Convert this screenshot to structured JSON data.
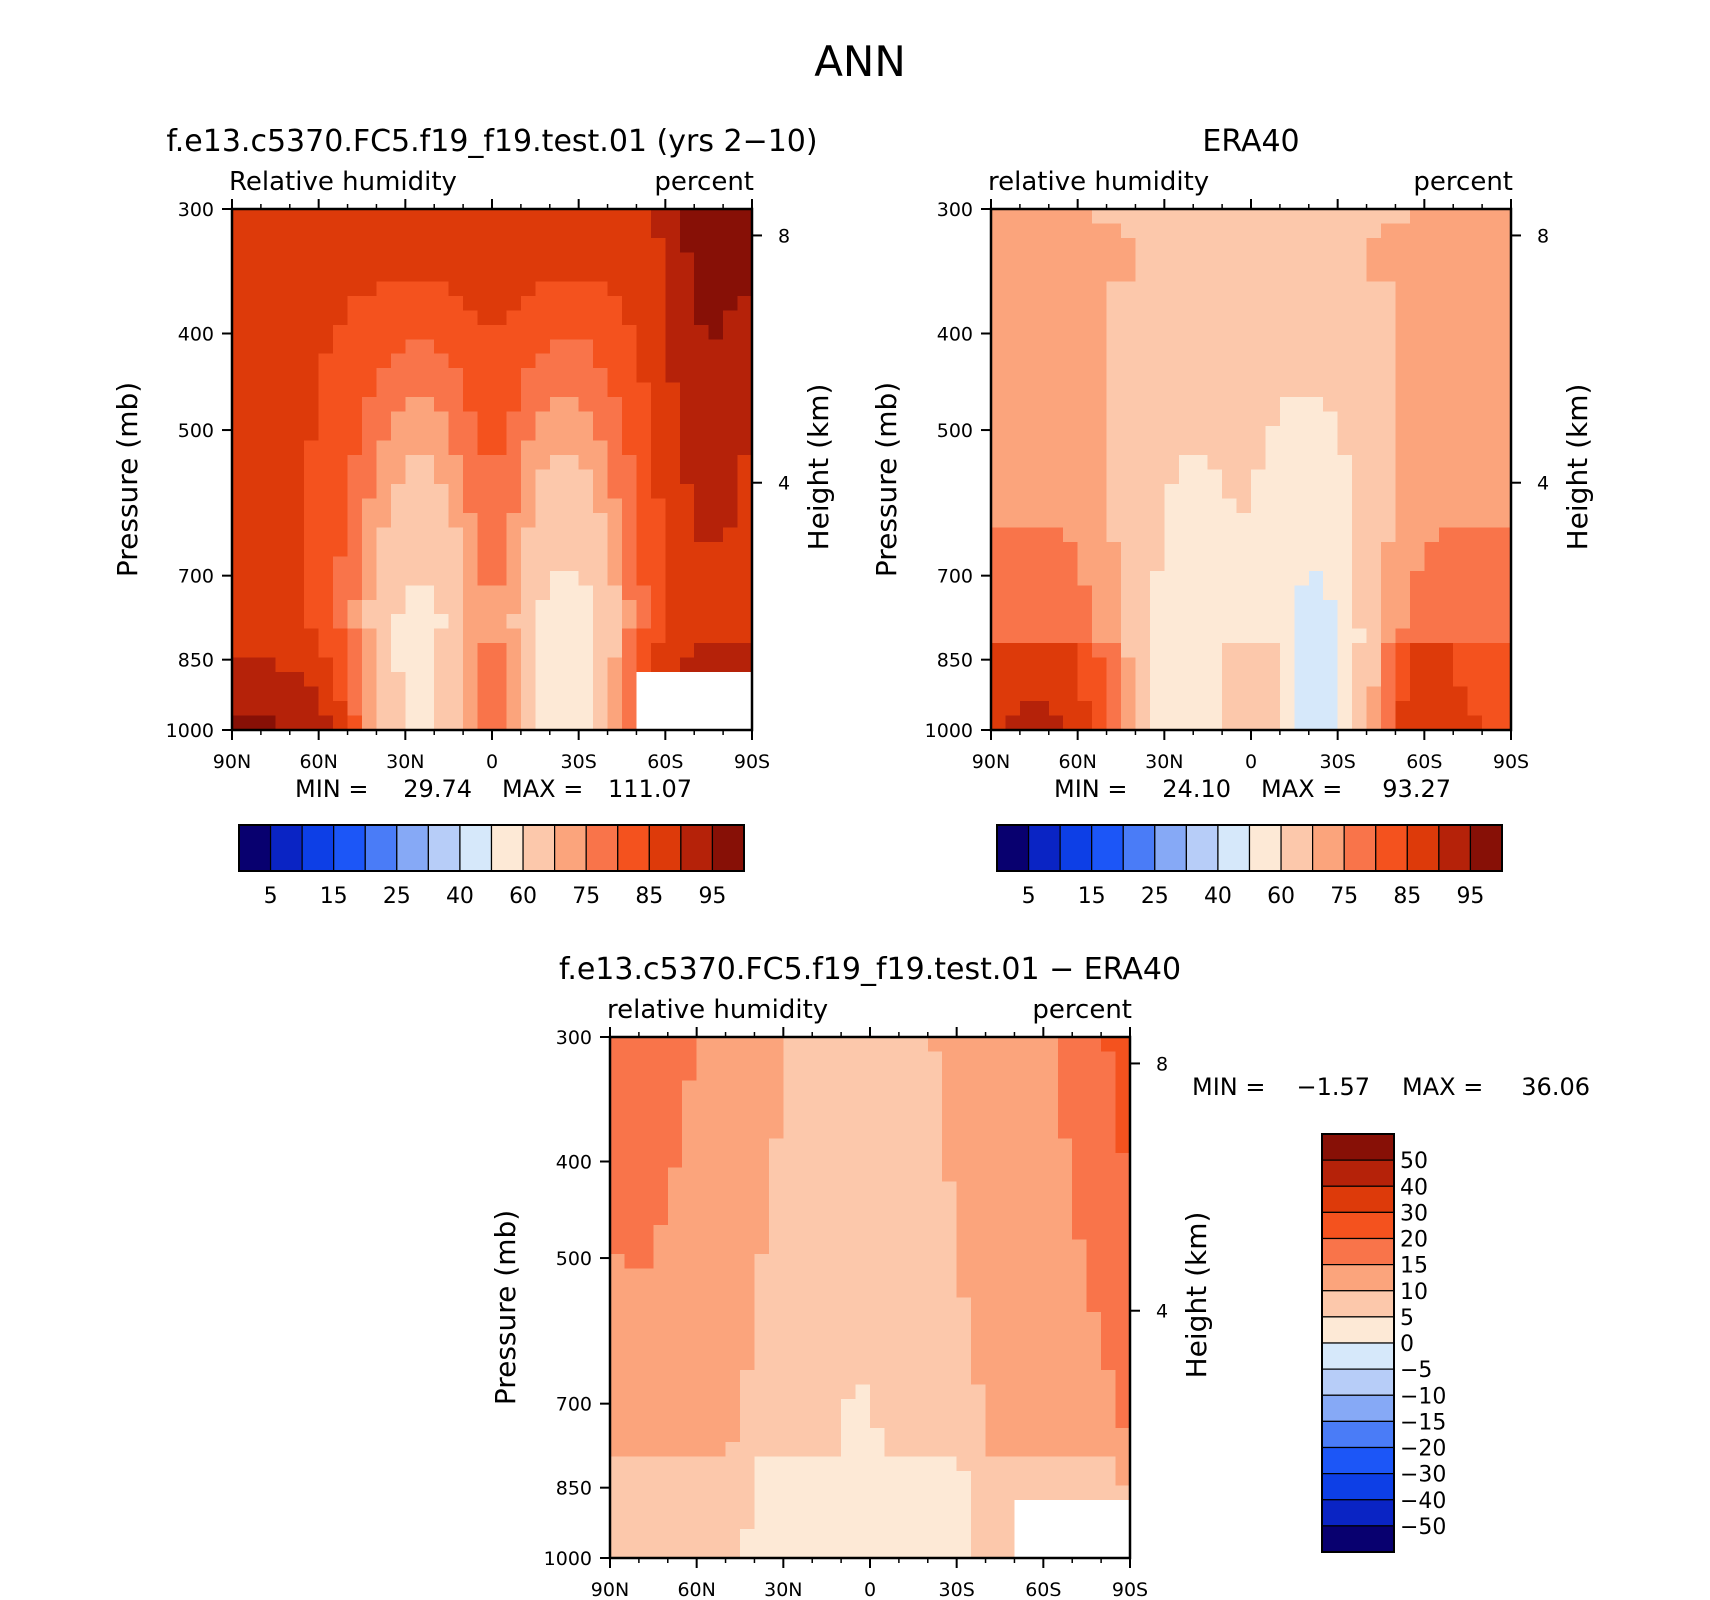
{
  "figure": {
    "title": "ANN"
  },
  "chart_data": [
    {
      "type": "heatmap",
      "title": "f.e13.c5370.FC5.f19_f19.test.01 (yrs 2−10)",
      "left_label": "Relative humidity",
      "right_label": "percent",
      "ylabel": "Pressure (mb)",
      "ylabel_right": "Height (km)",
      "x_ticks": [
        "90N",
        "60N",
        "30N",
        "0",
        "30S",
        "60S",
        "90S"
      ],
      "y_ticks": [
        "300",
        "400",
        "500",
        "700",
        "850",
        "1000"
      ],
      "y_ticks_right": [
        "8",
        "4"
      ],
      "ylim": [
        1000,
        300
      ],
      "xlim": [
        90,
        -90
      ],
      "stats": {
        "min_label": "MIN =",
        "min": "29.74",
        "max_label": "MAX =",
        "max": "111.07"
      },
      "colorbar": {
        "levels": [
          "5",
          "15",
          "25",
          "40",
          "60",
          "75",
          "85",
          "95"
        ],
        "colors": [
          "#08006f",
          "#0a24c4",
          "#0d3fe6",
          "#1c56f7",
          "#4a7cf7",
          "#86a9f6",
          "#b7cdf8",
          "#d6e8fa",
          "#fde9d6",
          "#fcc8ab",
          "#fba47c",
          "#f9744a",
          "#f4521e",
          "#dd3a0a",
          "#b52209",
          "#871006"
        ]
      },
      "field": "model"
    },
    {
      "type": "heatmap",
      "title": "ERA40",
      "left_label": "relative humidity",
      "right_label": "percent",
      "ylabel": "Pressure (mb)",
      "ylabel_right": "Height (km)",
      "x_ticks": [
        "90N",
        "60N",
        "30N",
        "0",
        "30S",
        "60S",
        "90S"
      ],
      "y_ticks": [
        "300",
        "400",
        "500",
        "700",
        "850",
        "1000"
      ],
      "y_ticks_right": [
        "8",
        "4"
      ],
      "ylim": [
        1000,
        300
      ],
      "xlim": [
        90,
        -90
      ],
      "stats": {
        "min_label": "MIN =",
        "min": "24.10",
        "max_label": "MAX =",
        "max": "93.27"
      },
      "colorbar": {
        "levels": [
          "5",
          "15",
          "25",
          "40",
          "60",
          "75",
          "85",
          "95"
        ],
        "colors": [
          "#08006f",
          "#0a24c4",
          "#0d3fe6",
          "#1c56f7",
          "#4a7cf7",
          "#86a9f6",
          "#b7cdf8",
          "#d6e8fa",
          "#fde9d6",
          "#fcc8ab",
          "#fba47c",
          "#f9744a",
          "#f4521e",
          "#dd3a0a",
          "#b52209",
          "#871006"
        ]
      },
      "field": "obs"
    },
    {
      "type": "heatmap",
      "title": "f.e13.c5370.FC5.f19_f19.test.01 − ERA40",
      "left_label": "relative humidity",
      "right_label": "percent",
      "ylabel": "Pressure (mb)",
      "ylabel_right": "Height (km)",
      "x_ticks": [
        "90N",
        "60N",
        "30N",
        "0",
        "30S",
        "60S",
        "90S"
      ],
      "y_ticks": [
        "300",
        "400",
        "500",
        "700",
        "850",
        "1000"
      ],
      "y_ticks_right": [
        "8",
        "4"
      ],
      "ylim": [
        1000,
        300
      ],
      "xlim": [
        90,
        -90
      ],
      "stats": {
        "min_label": "MIN =",
        "min": "−1.57",
        "max_label": "MAX =",
        "max": "36.06"
      },
      "colorbar": {
        "levels": [
          "50",
          "40",
          "30",
          "20",
          "15",
          "10",
          "5",
          "0",
          "−5",
          "−10",
          "−15",
          "−20",
          "−30",
          "−40",
          "−50"
        ],
        "colors": [
          "#871006",
          "#b52209",
          "#dd3a0a",
          "#f4521e",
          "#f9744a",
          "#fba47c",
          "#fcc8ab",
          "#fde9d6",
          "#d6e8fa",
          "#b7cdf8",
          "#86a9f6",
          "#4a7cf7",
          "#1c56f7",
          "#0d3fe6",
          "#0a24c4",
          "#08006f"
        ]
      },
      "field": "diff"
    }
  ]
}
